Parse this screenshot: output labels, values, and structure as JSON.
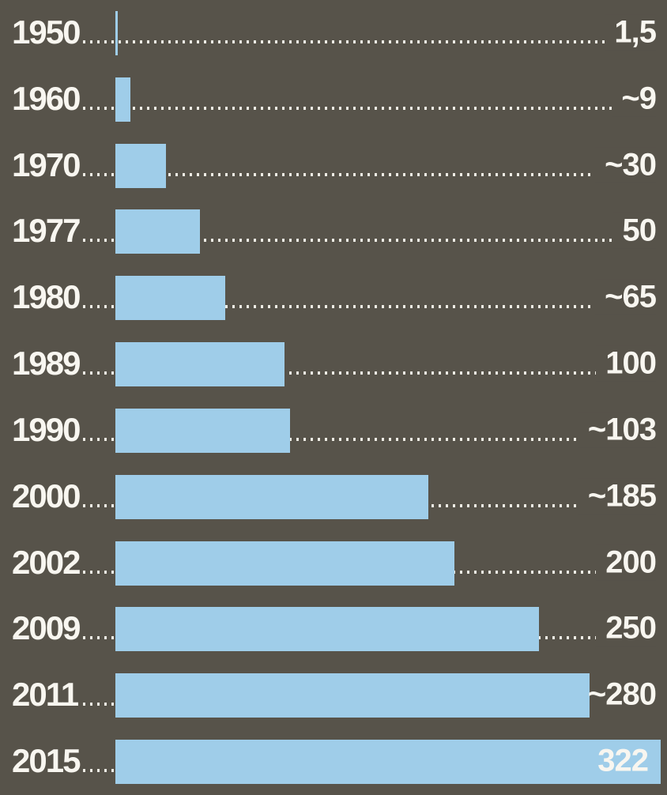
{
  "chart_data": {
    "type": "bar",
    "orientation": "horizontal",
    "categories": [
      "1950",
      "1960",
      "1970",
      "1977",
      "1980",
      "1989",
      "1990",
      "2000",
      "2002",
      "2009",
      "2011",
      "2015"
    ],
    "values": [
      1.5,
      9,
      30,
      50,
      65,
      100,
      103,
      185,
      200,
      250,
      280,
      322
    ],
    "value_labels": [
      "1,5",
      "~9",
      "~30",
      "50",
      "~65",
      "100",
      "~103",
      "~185",
      "200",
      "250",
      "~280",
      "322"
    ],
    "title": "",
    "xlabel": "",
    "ylabel": "",
    "xlim": [
      0,
      322
    ],
    "grid": "dotted-leader-lines",
    "legend_position": "none",
    "notes": "value label for 2015 is drawn inside its bar; approximate values prefixed with ~; decimal comma used for 1,5"
  },
  "colors": {
    "background": "#57534a",
    "bar": "#9fcde9",
    "text": "#f8f6f0",
    "dots": "#efede5"
  }
}
